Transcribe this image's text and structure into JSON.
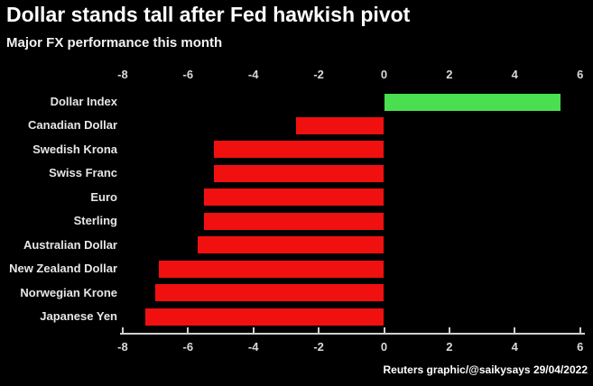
{
  "header": {
    "title": "Dollar stands tall after Fed hawkish pivot",
    "subtitle": "Major FX performance this month"
  },
  "footer": {
    "attribution": "Reuters graphic/@saikysays 29/04/2022"
  },
  "colors": {
    "background": "#000000",
    "positive_bar": "#4adf50",
    "negative_bar": "#f01010",
    "axis": "#cfcfcf",
    "tick_label": "#d9d9d9",
    "category_label": "#e6e6e6",
    "title_text": "#ffffff"
  },
  "chart_data": {
    "type": "bar",
    "orientation": "horizontal",
    "title": "Dollar stands tall after Fed hawkish pivot",
    "subtitle": "Major FX performance this month",
    "categories": [
      "Dollar Index",
      "Canadian Dollar",
      "Swedish Krona",
      "Swiss Franc",
      "Euro",
      "Sterling",
      "Australian Dollar",
      "New Zealand Dollar",
      "Norwegian Krone",
      "Japanese Yen"
    ],
    "values": [
      5.4,
      -2.7,
      -5.2,
      -5.2,
      -5.5,
      -5.5,
      -5.7,
      -6.9,
      -7.0,
      -7.3
    ],
    "xlabel": "",
    "ylabel": "",
    "xlim": [
      -8,
      6
    ],
    "xticks": [
      -8,
      -6,
      -4,
      -2,
      0,
      2,
      4,
      6
    ],
    "grid": false,
    "legend": "none",
    "axis_label_positions": [
      "top",
      "bottom"
    ],
    "positive_color_meaning": "gain",
    "negative_color_meaning": "loss"
  }
}
